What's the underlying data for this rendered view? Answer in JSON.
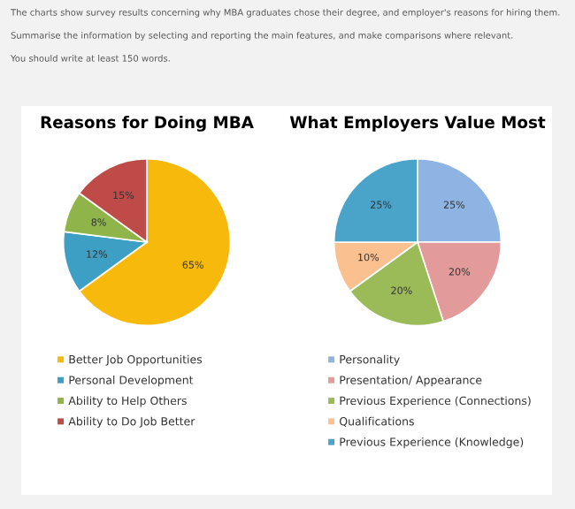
{
  "chart_data": [
    {
      "type": "pie",
      "title": "Reasons for Doing MBA",
      "annotations": [
        "The charts show survey results concerning why MBA graduates chose their degree, and employer's reasons for hiring them.",
        "Summarise the information by selecting and reporting the main features, and make comparisons where relevant.",
        "You should write at least 150 words."
      ],
      "categories": [
        "Better Job Opportunities",
        "Personal Development",
        "Ability to Help Others",
        "Ability to Do Job Better"
      ],
      "values": [
        65,
        12,
        8,
        15
      ],
      "colors": [
        "#f6b90c",
        "#3e9fc4",
        "#8fb54a",
        "#bf4b48"
      ],
      "value_labels": [
        "65%",
        "12%",
        "8%",
        "15%"
      ],
      "legend": "bottom"
    },
    {
      "type": "pie",
      "title": "What Employers Value Most",
      "categories": [
        "Personality",
        "Presentation/ Appearance",
        "Previous Experience (Connections)",
        "Qualifications",
        "Previous Experience (Knowledge)"
      ],
      "values": [
        25,
        20,
        20,
        10,
        25
      ],
      "colors": [
        "#8eb4e3",
        "#e39a9a",
        "#9bbb59",
        "#fac090",
        "#4aa3c8"
      ],
      "value_labels": [
        "25%",
        "20%",
        "20%",
        "10%",
        "25%"
      ],
      "legend": "bottom"
    }
  ]
}
